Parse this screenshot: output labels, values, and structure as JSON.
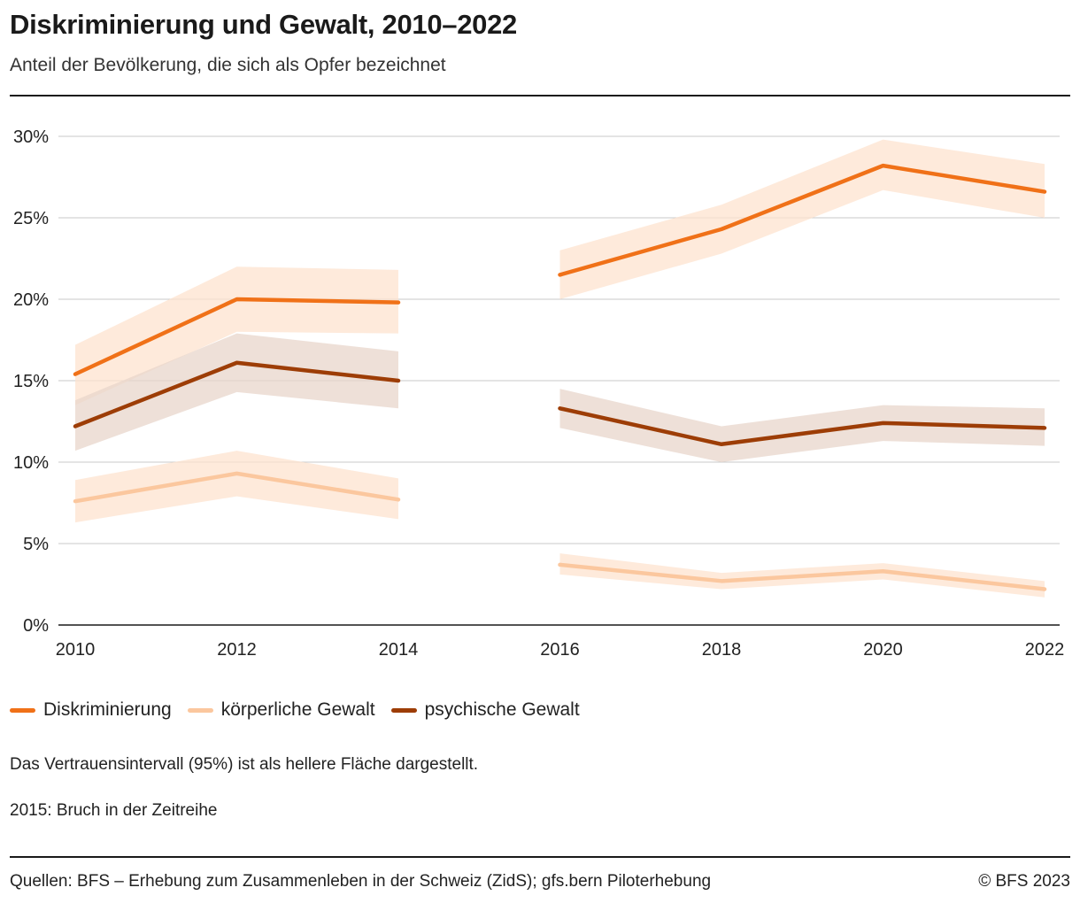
{
  "header": {
    "title": "Diskriminierung und Gewalt, 2010–2022",
    "subtitle": "Anteil der Bevölkerung, die sich als Opfer bezeichnet"
  },
  "notes": {
    "ci": "Das Vertrauensintervall (95%) ist als hellere Fläche dargestellt.",
    "break": "2015: Bruch in der Zeitreihe"
  },
  "footer": {
    "source": "Quellen: BFS – Erhebung zum Zusammenleben in der Schweiz (ZidS); gfs.bern Piloterhebung",
    "copyright": "© BFS 2023"
  },
  "chart_data": {
    "type": "line",
    "title": "Diskriminierung und Gewalt, 2010–2022",
    "subtitle": "Anteil der Bevölkerung, die sich als Opfer bezeichnet",
    "xlabel": "",
    "ylabel": "",
    "x_ticks": [
      "2010",
      "2012",
      "2014",
      "2016",
      "2018",
      "2020",
      "2022"
    ],
    "y_ticks": [
      "0%",
      "5%",
      "10%",
      "15%",
      "20%",
      "25%",
      "30%"
    ],
    "ylim": [
      0,
      30
    ],
    "grid": true,
    "legend_position": "bottom",
    "series_break_after": 2014,
    "series": [
      {
        "name": "Diskriminierung",
        "color": "#f07118",
        "band_color": "#fde3cf",
        "segments": [
          {
            "x": [
              2010,
              2012,
              2014
            ],
            "y": [
              15.4,
              20.0,
              19.8
            ],
            "ci_low": [
              13.5,
              18.0,
              17.9
            ],
            "ci_high": [
              17.2,
              22.0,
              21.8
            ]
          },
          {
            "x": [
              2016,
              2018,
              2020,
              2022
            ],
            "y": [
              21.5,
              24.3,
              28.2,
              26.6
            ],
            "ci_low": [
              20.0,
              22.8,
              26.7,
              25.0
            ],
            "ci_high": [
              23.0,
              25.8,
              29.8,
              28.3
            ]
          }
        ]
      },
      {
        "name": "körperliche Gewalt",
        "color": "#fbc79e",
        "band_color": "#fde3cf",
        "segments": [
          {
            "x": [
              2010,
              2012,
              2014
            ],
            "y": [
              7.6,
              9.3,
              7.7
            ],
            "ci_low": [
              6.3,
              7.9,
              6.5
            ],
            "ci_high": [
              8.9,
              10.7,
              9.0
            ]
          },
          {
            "x": [
              2016,
              2018,
              2020,
              2022
            ],
            "y": [
              3.7,
              2.7,
              3.3,
              2.2
            ],
            "ci_low": [
              3.1,
              2.2,
              2.8,
              1.7
            ],
            "ci_high": [
              4.4,
              3.2,
              3.8,
              2.7
            ]
          }
        ]
      },
      {
        "name": "psychische Gewalt",
        "color": "#9d3d06",
        "band_color": "#e8d6cb",
        "segments": [
          {
            "x": [
              2010,
              2012,
              2014
            ],
            "y": [
              12.2,
              16.1,
              15.0
            ],
            "ci_low": [
              10.7,
              14.3,
              13.3
            ],
            "ci_high": [
              13.8,
              17.9,
              16.8
            ]
          },
          {
            "x": [
              2016,
              2018,
              2020,
              2022
            ],
            "y": [
              13.3,
              11.1,
              12.4,
              12.1
            ],
            "ci_low": [
              12.1,
              10.0,
              11.3,
              11.0
            ],
            "ci_high": [
              14.5,
              12.2,
              13.5,
              13.3
            ]
          }
        ]
      }
    ]
  }
}
